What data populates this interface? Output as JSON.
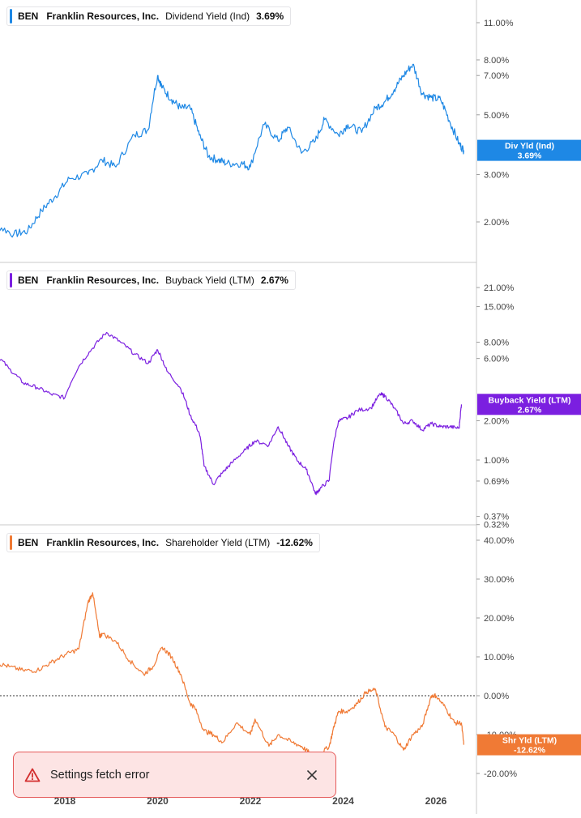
{
  "toast": {
    "message": "Settings fetch error",
    "warning_icon": "warning-triangle-icon",
    "close_icon": "close-icon"
  },
  "chart_data": [
    {
      "type": "line",
      "ticker": "BEN",
      "company": "Franklin Resources, Inc.",
      "metric": "Dividend Yield (Ind)",
      "value": "3.69%",
      "tag": [
        "Div Yld (Ind)",
        "3.69%"
      ],
      "color": "#1e88e5",
      "scale": "log",
      "ylim": [
        1.6,
        13
      ],
      "yticks": [
        11,
        8,
        7,
        5,
        3,
        2
      ],
      "ytick_labels": [
        "11.00%",
        "8.00%",
        "7.00%",
        "5.00%",
        "3.00%",
        "2.00%"
      ],
      "series": [
        {
          "x": [
            2016.2,
            2016.5,
            2016.9,
            2017.2,
            2017.5,
            2017.8,
            2018.1,
            2018.5,
            2018.8,
            2019.1,
            2019.5,
            2019.8,
            2020.0,
            2020.1,
            2020.3,
            2020.5,
            2020.7,
            2020.9,
            2021.1,
            2021.3,
            2021.5,
            2021.8,
            2022.0,
            2022.3,
            2022.6,
            2022.8,
            2023.1,
            2023.4,
            2023.6,
            2023.9,
            2024.1,
            2024.4,
            2024.7,
            2024.9,
            2025.1,
            2025.3,
            2025.5,
            2025.7,
            2025.9,
            2026.1,
            2026.3,
            2026.5,
            2026.6
          ],
          "values": [
            2.0,
            1.95,
            1.8,
            1.85,
            2.2,
            2.5,
            2.9,
            3.0,
            3.4,
            3.2,
            4.2,
            4.4,
            7.0,
            6.3,
            5.7,
            5.3,
            5.3,
            4.2,
            3.5,
            3.4,
            3.3,
            3.3,
            3.2,
            4.6,
            4.0,
            4.5,
            3.6,
            4.0,
            4.8,
            4.2,
            4.6,
            4.3,
            5.3,
            5.6,
            6.2,
            7.0,
            7.7,
            6.0,
            5.8,
            5.7,
            4.7,
            3.9,
            3.69
          ]
        }
      ]
    },
    {
      "type": "line",
      "ticker": "BEN",
      "company": "Franklin Resources, Inc.",
      "metric": "Buyback Yield (LTM)",
      "value": "2.67%",
      "tag": [
        "Buyback Yield (LTM)",
        "2.67%"
      ],
      "color": "#7b1fe0",
      "scale": "log",
      "ylim": [
        0.3,
        27
      ],
      "yticks": [
        21,
        15,
        8,
        6,
        2,
        1,
        0.69,
        0.37,
        0.32
      ],
      "ytick_labels": [
        "21.00%",
        "15.00%",
        "8.00%",
        "6.00%",
        "2.00%",
        "1.00%",
        "0.69%",
        "0.37%",
        "0.32%"
      ],
      "series": [
        {
          "x": [
            2016.2,
            2016.5,
            2016.8,
            2017.1,
            2017.4,
            2017.7,
            2018.0,
            2018.3,
            2018.6,
            2018.9,
            2019.2,
            2019.5,
            2019.8,
            2020.0,
            2020.2,
            2020.5,
            2020.7,
            2020.9,
            2021.0,
            2021.2,
            2021.4,
            2021.6,
            2021.9,
            2022.1,
            2022.4,
            2022.6,
            2022.8,
            2023.0,
            2023.2,
            2023.4,
            2023.5,
            2023.7,
            2023.9,
            2024.1,
            2024.3,
            2024.6,
            2024.8,
            2024.9,
            2025.1,
            2025.3,
            2025.5,
            2025.7,
            2025.9,
            2026.1,
            2026.3,
            2026.5,
            2026.55
          ],
          "values": [
            7.5,
            6.5,
            5.0,
            3.9,
            3.6,
            3.2,
            3.0,
            5.2,
            7.2,
            9.5,
            8.0,
            6.5,
            5.5,
            7.0,
            4.8,
            3.5,
            2.2,
            1.6,
            0.9,
            0.65,
            0.8,
            0.95,
            1.2,
            1.4,
            1.3,
            1.8,
            1.3,
            1.0,
            0.85,
            0.55,
            0.6,
            0.7,
            2.0,
            2.1,
            2.4,
            2.5,
            3.2,
            3.1,
            2.5,
            1.9,
            2.0,
            1.7,
            1.9,
            1.8,
            1.8,
            1.75,
            2.67
          ]
        }
      ]
    },
    {
      "type": "line",
      "ticker": "BEN",
      "company": "Franklin Resources, Inc.",
      "metric": "Shareholder Yield (LTM)",
      "value": "-12.62%",
      "tag": [
        "Shr Yld (LTM)",
        "-12.62%"
      ],
      "color": "#f07a35",
      "scale": "linear",
      "ylim": [
        -27,
        43
      ],
      "yticks": [
        40,
        30,
        20,
        10,
        0,
        -10,
        -20
      ],
      "ytick_labels": [
        "40.00%",
        "30.00%",
        "20.00%",
        "10.00%",
        "0.00%",
        "-10.00%",
        "-20.00%"
      ],
      "zero_line": true,
      "x_ticks": [
        2018,
        2020,
        2022,
        2024,
        2026
      ],
      "x_tick_labels": [
        "2018",
        "2020",
        "2022",
        "2024",
        "2026"
      ],
      "series": [
        {
          "x": [
            2016.2,
            2016.5,
            2016.8,
            2017.1,
            2017.4,
            2017.7,
            2018.0,
            2018.3,
            2018.5,
            2018.6,
            2018.75,
            2018.8,
            2019.1,
            2019.4,
            2019.7,
            2019.9,
            2020.1,
            2020.3,
            2020.5,
            2020.7,
            2020.8,
            2021.0,
            2021.2,
            2021.4,
            2021.7,
            2022.0,
            2022.1,
            2022.4,
            2022.6,
            2022.9,
            2023.1,
            2023.3,
            2023.5,
            2023.7,
            2023.8,
            2023.9,
            2024.1,
            2024.3,
            2024.5,
            2024.7,
            2024.9,
            2025.1,
            2025.3,
            2025.5,
            2025.7,
            2025.9,
            2026.0,
            2026.2,
            2026.4,
            2026.55,
            2026.6
          ],
          "values": [
            10.0,
            8.5,
            7.5,
            6.5,
            6.5,
            8.5,
            10.5,
            12.0,
            24.0,
            26.5,
            15.0,
            16.0,
            14.0,
            9.0,
            5.5,
            7.5,
            12.5,
            10.0,
            5.5,
            -2.0,
            -3.0,
            -9.0,
            -10.0,
            -12.0,
            -7.0,
            -10.0,
            -6.0,
            -13.0,
            -10.0,
            -12.0,
            -13.0,
            -15.0,
            -15.0,
            -13.0,
            -8.0,
            -4.0,
            -4.0,
            -2.0,
            1.0,
            1.5,
            -8.0,
            -10.0,
            -14.0,
            -10.0,
            -8.0,
            0.0,
            0.0,
            -3.0,
            -7.0,
            -7.0,
            -12.62
          ]
        }
      ]
    }
  ]
}
